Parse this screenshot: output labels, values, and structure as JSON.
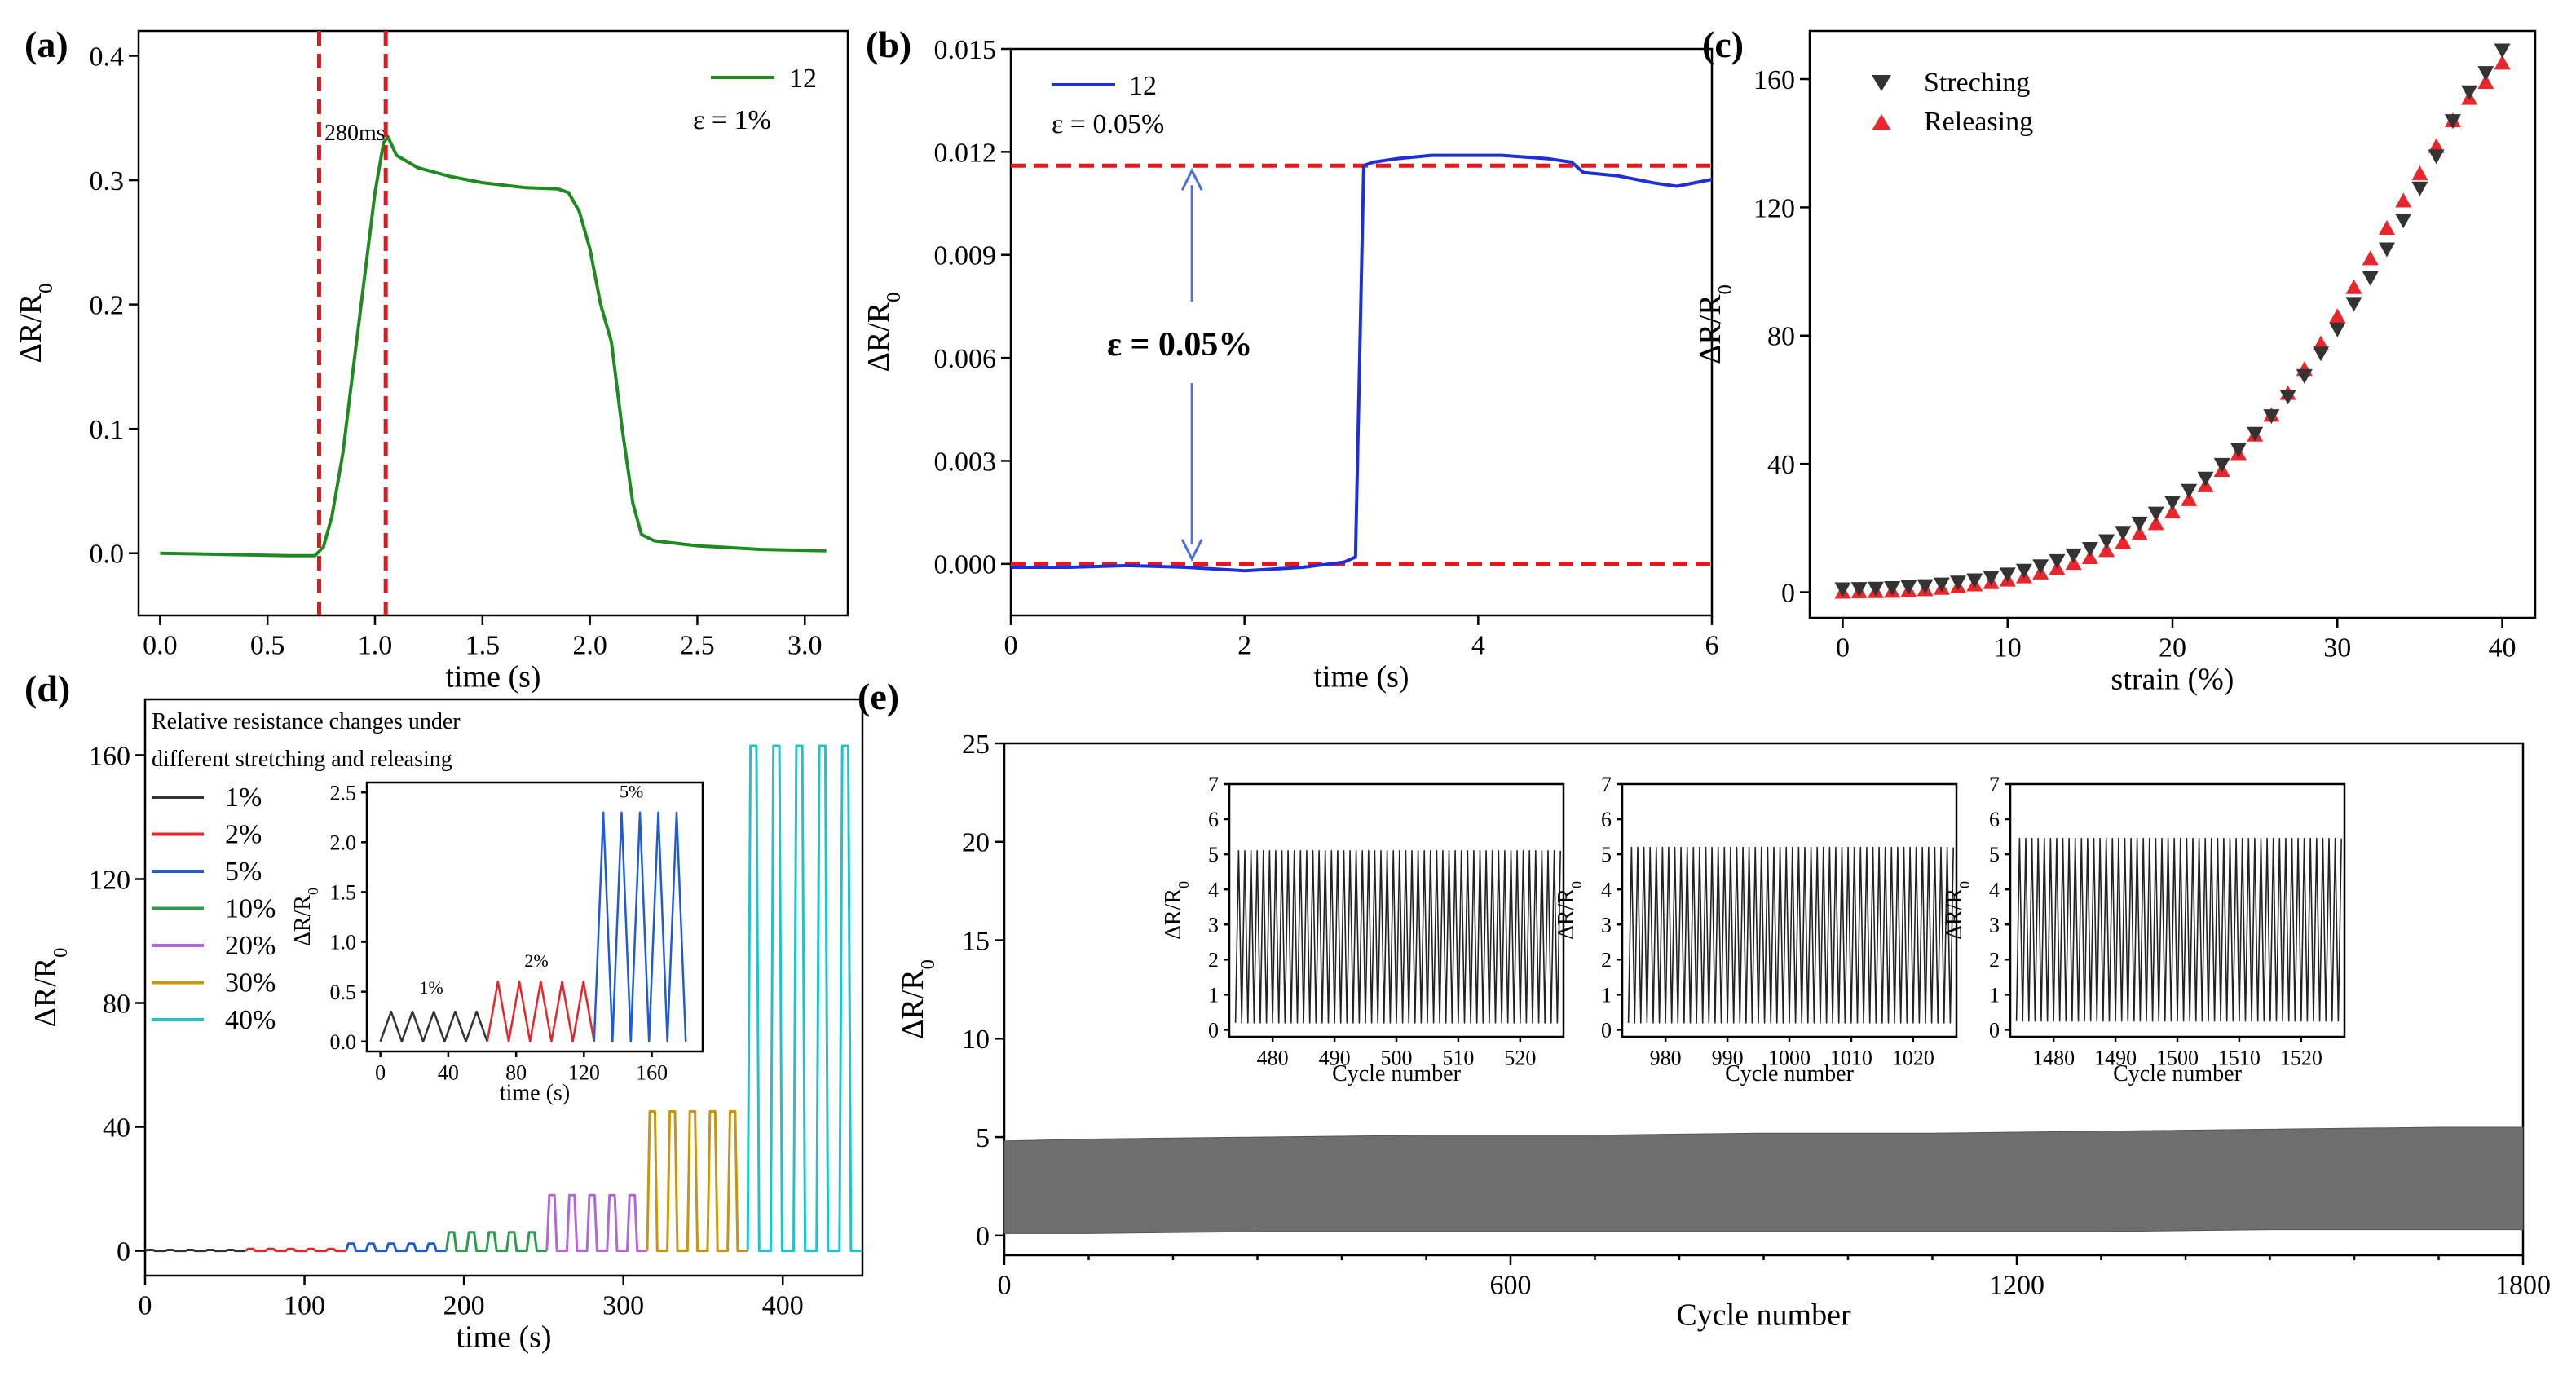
{
  "figure": {
    "panel_a": "(a)",
    "panel_b": "(b)",
    "panel_c": "(c)",
    "panel_d": "(d)",
    "panel_e": "(e)"
  },
  "colors": {
    "green": "#1f8a1f",
    "blue": "#1f2fd6",
    "red_dash": "#e8161b",
    "gray_fill": "#6e6e6e",
    "strain_colors": [
      "#333333",
      "#e3262a",
      "#1f5bd6",
      "#2e9a4e",
      "#b068d6",
      "#c8960c",
      "#1fc3c8"
    ]
  },
  "chart_data": [
    {
      "id": "a",
      "type": "line",
      "xlabel": "time (s)",
      "ylabel": "ΔR/R",
      "ylabel_sub": "0",
      "xlim": [
        -0.1,
        3.2
      ],
      "ylim": [
        -0.05,
        0.42
      ],
      "xticks": [
        "0.0",
        "0.5",
        "1.0",
        "1.5",
        "2.0",
        "2.5",
        "3.0"
      ],
      "yticks": [
        "0.0",
        "0.1",
        "0.2",
        "0.3",
        "0.4"
      ],
      "series": [
        {
          "name": "12",
          "x": [
            0.0,
            0.3,
            0.6,
            0.72,
            0.76,
            0.8,
            0.85,
            0.9,
            0.95,
            1.0,
            1.04,
            1.06,
            1.1,
            1.2,
            1.35,
            1.5,
            1.7,
            1.85,
            1.9,
            1.95,
            2.0,
            2.05,
            2.1,
            2.15,
            2.2,
            2.24,
            2.3,
            2.5,
            2.8,
            3.1
          ],
          "y": [
            0.0,
            -0.001,
            -0.002,
            -0.002,
            0.005,
            0.03,
            0.08,
            0.15,
            0.22,
            0.29,
            0.33,
            0.335,
            0.32,
            0.31,
            0.303,
            0.298,
            0.294,
            0.293,
            0.29,
            0.275,
            0.245,
            0.2,
            0.17,
            0.1,
            0.04,
            0.015,
            0.01,
            0.006,
            0.003,
            0.002
          ]
        }
      ],
      "vlines": [
        0.74,
        1.05
      ],
      "annotations": {
        "span": "280ms",
        "legend": "12",
        "strain": "ε = 1%"
      }
    },
    {
      "id": "b",
      "type": "line",
      "xlabel": "time (s)",
      "ylabel": "ΔR/R",
      "ylabel_sub": "0",
      "xlim": [
        0,
        6
      ],
      "ylim": [
        -0.0015,
        0.015
      ],
      "xticks": [
        "0",
        "2",
        "4",
        "6"
      ],
      "yticks": [
        "0.000",
        "0.003",
        "0.006",
        "0.009",
        "0.012",
        "0.015"
      ],
      "series": [
        {
          "name": "12",
          "x": [
            0,
            0.5,
            1.0,
            1.5,
            2.0,
            2.5,
            2.85,
            2.95,
            3.02,
            3.1,
            3.3,
            3.6,
            3.9,
            4.2,
            4.6,
            4.8,
            4.9,
            5.2,
            5.5,
            5.7,
            6.0
          ],
          "y": [
            -0.0001,
            -0.0001,
            -5e-05,
            -0.0001,
            -0.0002,
            -0.0001,
            5e-05,
            0.0002,
            0.0116,
            0.0117,
            0.0118,
            0.0119,
            0.0119,
            0.0119,
            0.0118,
            0.0117,
            0.0114,
            0.0113,
            0.0111,
            0.011,
            0.0112
          ]
        }
      ],
      "hlines": [
        0.0,
        0.0116
      ],
      "arrow_x": 1.55,
      "annotations": {
        "legend": "12",
        "strain": "ε = 0.05%",
        "big": "ε = 0.05%"
      }
    },
    {
      "id": "c",
      "type": "scatter",
      "xlabel": "strain (%)",
      "ylabel": "ΔR/R",
      "ylabel_sub": "0",
      "xlim": [
        -2,
        42
      ],
      "ylim": [
        -8,
        175
      ],
      "xticks": [
        "0",
        "10",
        "20",
        "30",
        "40"
      ],
      "yticks": [
        "0",
        "40",
        "80",
        "120",
        "160"
      ],
      "series": [
        {
          "name": "Streching",
          "marker": "triangle-down",
          "x": [
            0,
            1,
            2,
            3,
            4,
            5,
            6,
            7,
            8,
            9,
            10,
            11,
            12,
            13,
            14,
            15,
            16,
            17,
            18,
            19,
            20,
            21,
            22,
            23,
            24,
            25,
            26,
            27,
            28,
            29,
            30,
            31,
            32,
            33,
            34,
            35,
            36,
            37,
            38,
            39,
            40
          ],
          "y": [
            0,
            0.1,
            0.2,
            0.4,
            0.7,
            1.0,
            1.5,
            2.1,
            2.8,
            3.6,
            4.6,
            5.8,
            7.2,
            8.8,
            10.6,
            12.6,
            15,
            17.6,
            20.5,
            23.6,
            27,
            30.7,
            34.5,
            38.8,
            43.5,
            48.5,
            54,
            60,
            66.5,
            73.5,
            81,
            89,
            97,
            106,
            115,
            125,
            135,
            146,
            155,
            161,
            168
          ]
        },
        {
          "name": "Releasing",
          "marker": "triangle-up",
          "x": [
            0,
            1,
            2,
            3,
            4,
            5,
            6,
            7,
            8,
            9,
            10,
            11,
            12,
            13,
            14,
            15,
            16,
            17,
            18,
            19,
            20,
            21,
            22,
            23,
            24,
            25,
            26,
            27,
            28,
            29,
            30,
            31,
            32,
            33,
            34,
            35,
            36,
            37,
            38,
            39,
            40
          ],
          "y": [
            0,
            0.1,
            0.2,
            0.3,
            0.5,
            0.8,
            1.2,
            1.7,
            2.3,
            3.0,
            3.8,
            4.8,
            6.0,
            7.4,
            9,
            10.8,
            13,
            15.5,
            18.3,
            21.4,
            25,
            28.9,
            33.2,
            38,
            43.2,
            49,
            55.2,
            62,
            69.5,
            77.5,
            86,
            95,
            104,
            113.5,
            122,
            130.5,
            139,
            147,
            154,
            159,
            165
          ]
        }
      ]
    },
    {
      "id": "d",
      "type": "line",
      "xlabel": "time (s)",
      "ylabel": "ΔR/R",
      "ylabel_sub": "0",
      "xlim": [
        0,
        450
      ],
      "ylim": [
        -8,
        178
      ],
      "xticks": [
        "0",
        "100",
        "200",
        "300",
        "400"
      ],
      "yticks": [
        "0",
        "40",
        "80",
        "120",
        "160"
      ],
      "title_lines": [
        "Relative resistance changes under",
        "different stretching and releasing"
      ],
      "segments": [
        {
          "name": "1%",
          "start": 0,
          "end": 63,
          "peak": 0.3
        },
        {
          "name": "2%",
          "start": 63,
          "end": 126,
          "peak": 0.6
        },
        {
          "name": "5%",
          "start": 126,
          "end": 189,
          "peak": 2.3
        },
        {
          "name": "10%",
          "start": 189,
          "end": 252,
          "peak": 6
        },
        {
          "name": "20%",
          "start": 252,
          "end": 315,
          "peak": 18
        },
        {
          "name": "30%",
          "start": 315,
          "end": 378,
          "peak": 45
        },
        {
          "name": "40%",
          "start": 378,
          "end": 450,
          "peak": 163
        }
      ],
      "cycles_per_segment": 5,
      "inset": {
        "xlim": [
          -8,
          190
        ],
        "ylim": [
          -0.1,
          2.6
        ],
        "xticks": [
          "0",
          "40",
          "80",
          "120",
          "160"
        ],
        "yticks": [
          "0.0",
          "0.5",
          "1.0",
          "1.5",
          "2.0",
          "2.5"
        ],
        "xlabel": "time (s)",
        "ylabel": "ΔR/R",
        "ylabel_sub": "0",
        "labels": [
          "1%",
          "2%",
          "5%"
        ]
      }
    },
    {
      "id": "e",
      "type": "area",
      "xlabel": "Cycle number",
      "ylabel": "ΔR/R",
      "ylabel_sub": "0",
      "xlim": [
        0,
        1800
      ],
      "ylim": [
        -1,
        25
      ],
      "xticks": [
        "0",
        "600",
        "1200",
        "1800"
      ],
      "yticks": [
        "0",
        "5",
        "10",
        "15",
        "20",
        "25"
      ],
      "envelope_x": [
        0,
        100,
        300,
        500,
        700,
        900,
        1100,
        1300,
        1500,
        1700,
        1800
      ],
      "envelope_max": [
        4.8,
        4.9,
        5.0,
        5.1,
        5.1,
        5.2,
        5.2,
        5.3,
        5.4,
        5.5,
        5.5
      ],
      "envelope_min": [
        0.1,
        0.1,
        0.2,
        0.2,
        0.2,
        0.2,
        0.2,
        0.2,
        0.3,
        0.3,
        0.3
      ],
      "insets": [
        {
          "xlim": [
            473,
            527
          ],
          "xticks": [
            "480",
            "490",
            "500",
            "510",
            "520"
          ],
          "max": 5.1,
          "min": 0.2
        },
        {
          "xlim": [
            973,
            1027
          ],
          "xticks": [
            "980",
            "990",
            "1000",
            "1010",
            "1020"
          ],
          "max": 5.2,
          "min": 0.2
        },
        {
          "xlim": [
            1473,
            1527
          ],
          "xticks": [
            "1480",
            "1490",
            "1500",
            "1510",
            "1520"
          ],
          "max": 5.45,
          "min": 0.25
        }
      ],
      "inset_ylim": [
        -0.2,
        7
      ],
      "inset_yticks": [
        "0",
        "1",
        "2",
        "3",
        "4",
        "5",
        "6",
        "7"
      ],
      "inset_xlabel": "Cycle number",
      "inset_ylabel": "ΔR/R",
      "inset_ylabel_sub": "0"
    }
  ]
}
